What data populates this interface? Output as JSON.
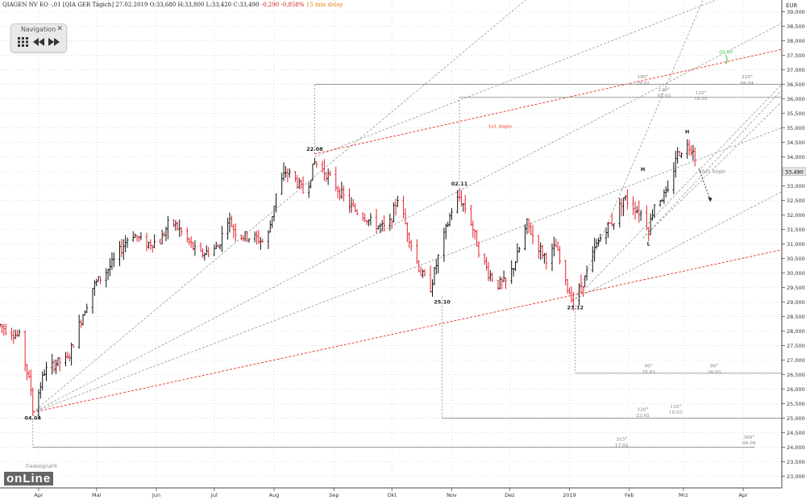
{
  "header": {
    "instrument": "QIAGEN NV EO -,01 [QIA GER Tägich]",
    "date": "27.02.2019",
    "open": "O:33,680",
    "high": "H:33,800",
    "low": "L:33,420",
    "close": "C:33,490",
    "change": "-0,290 -0,858%",
    "delay": "15 min delay"
  },
  "navigation": {
    "title": "Navigation",
    "close_label": "✕",
    "icons": [
      "grid-icon",
      "rewind-icon",
      "fast-forward-icon"
    ]
  },
  "logo": {
    "text": "onLine",
    "sub": "Tradesignal®"
  },
  "colors": {
    "up": "#111111",
    "down": "#e8202a",
    "fan": "#9a9a9a",
    "red_line": "#e83020",
    "grid": "#d6d6d6",
    "current_price_bg": "#e4e4e4"
  },
  "chart_data": {
    "type": "ohlc",
    "currency": "EUR",
    "y_ticks": [
      23,
      23.5,
      24,
      24.5,
      25,
      25.5,
      26,
      26.5,
      27,
      27.5,
      28,
      28.5,
      29,
      29.5,
      30,
      30.5,
      31,
      31.5,
      32,
      32.5,
      33,
      33.5,
      34,
      34.5,
      35,
      35.5,
      36,
      36.5,
      37,
      37.5,
      38,
      38.5,
      39
    ],
    "ylim": [
      22.6,
      39.4
    ],
    "current_price": "33,490",
    "x_labels": [
      {
        "label": "Apr",
        "d": 7
      },
      {
        "label": "Mai",
        "d": 37
      },
      {
        "label": "Jun",
        "d": 68
      },
      {
        "label": "Jul",
        "d": 98
      },
      {
        "label": "Aug",
        "d": 129
      },
      {
        "label": "Sep",
        "d": 160
      },
      {
        "label": "Okt",
        "d": 190
      },
      {
        "label": "Nov",
        "d": 221
      },
      {
        "label": "Dez",
        "d": 251
      },
      {
        "label": "2019",
        "d": 282
      },
      {
        "label": "Feb",
        "d": 313
      },
      {
        "label": "Mrz",
        "d": 341
      },
      {
        "label": "Apr",
        "d": 372
      }
    ],
    "xlim": [
      -13,
      392
    ],
    "anchor_price": [
      {
        "d": -13,
        "p": 28.2
      },
      {
        "d": -3,
        "p": 27.8
      },
      {
        "d": 3,
        "p": 26.0
      },
      {
        "d": 4,
        "p": 25.2
      },
      {
        "d": 10,
        "p": 26.6
      },
      {
        "d": 16,
        "p": 26.9
      },
      {
        "d": 22,
        "p": 27.0
      },
      {
        "d": 30,
        "p": 28.6
      },
      {
        "d": 35,
        "p": 29.5
      },
      {
        "d": 45,
        "p": 30.3
      },
      {
        "d": 55,
        "p": 31.4
      },
      {
        "d": 62,
        "p": 31.0
      },
      {
        "d": 70,
        "p": 31.1
      },
      {
        "d": 75,
        "p": 31.8
      },
      {
        "d": 80,
        "p": 31.5
      },
      {
        "d": 90,
        "p": 30.6
      },
      {
        "d": 100,
        "p": 30.9
      },
      {
        "d": 105,
        "p": 31.9
      },
      {
        "d": 110,
        "p": 31.3
      },
      {
        "d": 120,
        "p": 31.2
      },
      {
        "d": 125,
        "p": 31.0
      },
      {
        "d": 130,
        "p": 32.7
      },
      {
        "d": 135,
        "p": 33.5
      },
      {
        "d": 140,
        "p": 33.2
      },
      {
        "d": 145,
        "p": 32.7
      },
      {
        "d": 150,
        "p": 33.8
      },
      {
        "d": 155,
        "p": 33.5
      },
      {
        "d": 160,
        "p": 33.1
      },
      {
        "d": 165,
        "p": 32.6
      },
      {
        "d": 170,
        "p": 32.2
      },
      {
        "d": 175,
        "p": 32.0
      },
      {
        "d": 180,
        "p": 31.7
      },
      {
        "d": 188,
        "p": 31.5
      },
      {
        "d": 193,
        "p": 32.6
      },
      {
        "d": 200,
        "p": 31.0
      },
      {
        "d": 205,
        "p": 30.0
      },
      {
        "d": 210,
        "p": 29.5
      },
      {
        "d": 215,
        "p": 30.8
      },
      {
        "d": 222,
        "p": 32.4
      },
      {
        "d": 225,
        "p": 32.6
      },
      {
        "d": 230,
        "p": 32.0
      },
      {
        "d": 235,
        "p": 30.8
      },
      {
        "d": 240,
        "p": 30.0
      },
      {
        "d": 245,
        "p": 29.6
      },
      {
        "d": 250,
        "p": 29.7
      },
      {
        "d": 255,
        "p": 30.6
      },
      {
        "d": 260,
        "p": 31.7
      },
      {
        "d": 265,
        "p": 31.0
      },
      {
        "d": 270,
        "p": 30.5
      },
      {
        "d": 275,
        "p": 30.9
      },
      {
        "d": 280,
        "p": 29.6
      },
      {
        "d": 284,
        "p": 29.1
      },
      {
        "d": 290,
        "p": 29.8
      },
      {
        "d": 295,
        "p": 30.8
      },
      {
        "d": 300,
        "p": 31.5
      },
      {
        "d": 305,
        "p": 31.8
      },
      {
        "d": 310,
        "p": 32.6
      },
      {
        "d": 315,
        "p": 32.3
      },
      {
        "d": 320,
        "p": 32.0
      },
      {
        "d": 323,
        "p": 31.5
      },
      {
        "d": 326,
        "p": 32.4
      },
      {
        "d": 330,
        "p": 32.6
      },
      {
        "d": 334,
        "p": 32.8
      },
      {
        "d": 337,
        "p": 34.0
      },
      {
        "d": 342,
        "p": 34.4
      },
      {
        "d": 346,
        "p": 34.3
      },
      {
        "d": 349,
        "p": 33.5
      }
    ],
    "pivots": [
      {
        "label": "04.04",
        "d": 4,
        "p": 25.2,
        "pos": "below"
      },
      {
        "label": "22.08",
        "d": 150,
        "p": 34.1,
        "pos": "above"
      },
      {
        "label": "02.11",
        "d": 225,
        "p": 32.9,
        "pos": "above"
      },
      {
        "label": "25.10",
        "d": 216,
        "p": 29.2,
        "pos": "below"
      },
      {
        "label": "27.12",
        "d": 285,
        "p": 29.0,
        "pos": "below"
      },
      {
        "label": "H",
        "d": 343,
        "p": 34.7,
        "pos": "above"
      },
      {
        "label": "H",
        "d": 320,
        "p": 33.4,
        "pos": "above"
      },
      {
        "label": "L",
        "d": 323,
        "p": 31.2,
        "pos": "below"
      }
    ],
    "fan_lines": [
      {
        "d1": 4,
        "p1": 25.2,
        "d2": 270,
        "p2": 40.0
      },
      {
        "d1": 4,
        "p1": 25.2,
        "d2": 392,
        "p2": 38.6
      },
      {
        "d1": 4,
        "p1": 25.2,
        "d2": 392,
        "p2": 35.0
      },
      {
        "d1": 285,
        "p1": 29.1,
        "d2": 392,
        "p2": 36.5
      },
      {
        "d1": 285,
        "p1": 29.1,
        "d2": 392,
        "p2": 32.8
      },
      {
        "d1": 285,
        "p1": 29.1,
        "d2": 355,
        "p2": 40.0
      },
      {
        "d1": 320,
        "p1": 31.2,
        "d2": 392,
        "p2": 36.3
      },
      {
        "d1": 320,
        "p1": 31.2,
        "d2": 392,
        "p2": 35.9
      },
      {
        "d1": 150,
        "p1": 34.0,
        "d2": 381,
        "p2": 40.0
      }
    ],
    "red_lines": [
      {
        "d1": 4,
        "p1": 25.2,
        "d2": 392,
        "p2": 30.8
      },
      {
        "d1": 150,
        "p1": 34.1,
        "d2": 392,
        "p2": 37.7
      }
    ],
    "labels": [
      {
        "text": "180°",
        "d": 320,
        "p": 36.7,
        "color": "#777"
      },
      {
        "text": "29.02",
        "d": 320,
        "p": 36.48,
        "color": "#777"
      },
      {
        "text": "120°",
        "d": 331,
        "p": 36.26,
        "color": "#777"
      },
      {
        "text": "05.03",
        "d": 331,
        "p": 36.05,
        "color": "#777"
      },
      {
        "text": "135°",
        "d": 350,
        "p": 36.15,
        "color": "#777"
      },
      {
        "text": "18.03",
        "d": 350,
        "p": 35.95,
        "color": "#777"
      },
      {
        "text": "225°",
        "d": 374,
        "p": 36.7,
        "color": "#777"
      },
      {
        "text": "06.04",
        "d": 374,
        "p": 36.48,
        "color": "#777"
      },
      {
        "text": "05.09",
        "d": 363,
        "p": 37.55,
        "color": "#2fc42f"
      },
      {
        "text": "1x1 Angle",
        "d": 246,
        "p": 35.0,
        "color": "#e83020"
      },
      {
        "text": "45x1 Angle",
        "d": 356,
        "p": 33.45,
        "color": "#777"
      },
      {
        "text": "90°",
        "d": 323,
        "p": 26.75,
        "color": "#777"
      },
      {
        "text": "25.02",
        "d": 323,
        "p": 26.55,
        "color": "#777"
      },
      {
        "text": "90°",
        "d": 357,
        "p": 26.75,
        "color": "#777"
      },
      {
        "text": "26.03",
        "d": 357,
        "p": 26.55,
        "color": "#777"
      },
      {
        "text": "120°",
        "d": 320,
        "p": 25.25,
        "color": "#777"
      },
      {
        "text": "23.02",
        "d": 320,
        "p": 25.05,
        "color": "#777"
      },
      {
        "text": "135°",
        "d": 337,
        "p": 25.35,
        "color": "#777"
      },
      {
        "text": "10.03",
        "d": 337,
        "p": 25.15,
        "color": "#777"
      },
      {
        "text": "315°",
        "d": 309,
        "p": 24.22,
        "color": "#777"
      },
      {
        "text": "17.02",
        "d": 309,
        "p": 24.02,
        "color": "#777"
      },
      {
        "text": "360°",
        "d": 375,
        "p": 24.3,
        "color": "#777"
      },
      {
        "text": "04.04",
        "d": 375,
        "p": 24.1,
        "color": "#777"
      }
    ],
    "green_marker": {
      "d": 363,
      "p1": 37.2,
      "p2": 37.5
    },
    "projection_arrow": {
      "d1": 349,
      "p1": 33.6,
      "d2": 355,
      "p2": 32.5
    }
  }
}
